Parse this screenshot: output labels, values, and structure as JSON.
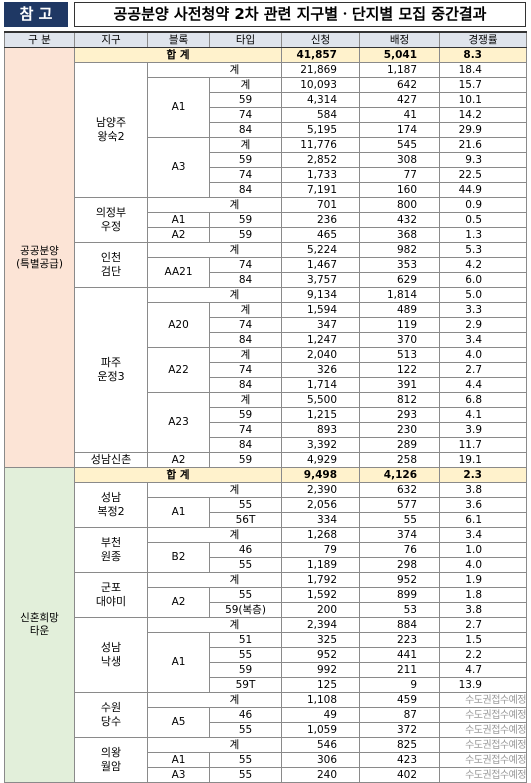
{
  "header": {
    "badge": "참 고",
    "title": "공공분양 사전청약 2차 관련 지구별ㆍ단지별 모집 중간결과"
  },
  "table": {
    "columns": [
      "구 분",
      "지구",
      "블록",
      "타입",
      "신청",
      "배정",
      "경쟁률"
    ],
    "sections": [
      {
        "name": [
          "공공분양",
          "(특별공급)"
        ],
        "total": {
          "label": "합 계",
          "apply": "41,857",
          "assign": "5,041",
          "ratio": "8.3"
        },
        "districts": [
          {
            "name": [
              "남양주",
              "왕숙2"
            ],
            "total": {
              "label": "계",
              "apply": "21,869",
              "assign": "1,187",
              "ratio": "18.4"
            },
            "blocks": [
              {
                "name": "A1",
                "rows": [
                  {
                    "type": "계",
                    "apply": "10,093",
                    "assign": "642",
                    "ratio": "15.7"
                  },
                  {
                    "type": "59",
                    "apply": "4,314",
                    "assign": "427",
                    "ratio": "10.1"
                  },
                  {
                    "type": "74",
                    "apply": "584",
                    "assign": "41",
                    "ratio": "14.2"
                  },
                  {
                    "type": "84",
                    "apply": "5,195",
                    "assign": "174",
                    "ratio": "29.9"
                  }
                ]
              },
              {
                "name": "A3",
                "rows": [
                  {
                    "type": "계",
                    "apply": "11,776",
                    "assign": "545",
                    "ratio": "21.6"
                  },
                  {
                    "type": "59",
                    "apply": "2,852",
                    "assign": "308",
                    "ratio": "9.3"
                  },
                  {
                    "type": "74",
                    "apply": "1,733",
                    "assign": "77",
                    "ratio": "22.5"
                  },
                  {
                    "type": "84",
                    "apply": "7,191",
                    "assign": "160",
                    "ratio": "44.9"
                  }
                ]
              }
            ]
          },
          {
            "name": [
              "의정부",
              "우정"
            ],
            "total": {
              "label": "계",
              "apply": "701",
              "assign": "800",
              "ratio": "0.9"
            },
            "blocks": [
              {
                "name": "A1",
                "rows": [
                  {
                    "type": "59",
                    "apply": "236",
                    "assign": "432",
                    "ratio": "0.5"
                  }
                ]
              },
              {
                "name": "A2",
                "rows": [
                  {
                    "type": "59",
                    "apply": "465",
                    "assign": "368",
                    "ratio": "1.3"
                  }
                ]
              }
            ]
          },
          {
            "name": [
              "인천",
              "검단"
            ],
            "total": {
              "label": "계",
              "apply": "5,224",
              "assign": "982",
              "ratio": "5.3"
            },
            "blocks": [
              {
                "name": "AA21",
                "rows": [
                  {
                    "type": "74",
                    "apply": "1,467",
                    "assign": "353",
                    "ratio": "4.2"
                  },
                  {
                    "type": "84",
                    "apply": "3,757",
                    "assign": "629",
                    "ratio": "6.0"
                  }
                ]
              }
            ]
          },
          {
            "name": [
              "파주",
              "운정3"
            ],
            "total": {
              "label": "계",
              "apply": "9,134",
              "assign": "1,814",
              "ratio": "5.0"
            },
            "blocks": [
              {
                "name": "A20",
                "rows": [
                  {
                    "type": "계",
                    "apply": "1,594",
                    "assign": "489",
                    "ratio": "3.3"
                  },
                  {
                    "type": "74",
                    "apply": "347",
                    "assign": "119",
                    "ratio": "2.9"
                  },
                  {
                    "type": "84",
                    "apply": "1,247",
                    "assign": "370",
                    "ratio": "3.4"
                  }
                ]
              },
              {
                "name": "A22",
                "rows": [
                  {
                    "type": "계",
                    "apply": "2,040",
                    "assign": "513",
                    "ratio": "4.0"
                  },
                  {
                    "type": "74",
                    "apply": "326",
                    "assign": "122",
                    "ratio": "2.7"
                  },
                  {
                    "type": "84",
                    "apply": "1,714",
                    "assign": "391",
                    "ratio": "4.4"
                  }
                ]
              },
              {
                "name": "A23",
                "rows": [
                  {
                    "type": "계",
                    "apply": "5,500",
                    "assign": "812",
                    "ratio": "6.8"
                  },
                  {
                    "type": "59",
                    "apply": "1,215",
                    "assign": "293",
                    "ratio": "4.1"
                  },
                  {
                    "type": "74",
                    "apply": "893",
                    "assign": "230",
                    "ratio": "3.9"
                  },
                  {
                    "type": "84",
                    "apply": "3,392",
                    "assign": "289",
                    "ratio": "11.7"
                  }
                ]
              }
            ]
          },
          {
            "name": [
              "성남신촌"
            ],
            "blocks": [
              {
                "name": "A2",
                "rows": [
                  {
                    "type": "59",
                    "apply": "4,929",
                    "assign": "258",
                    "ratio": "19.1"
                  }
                ]
              }
            ]
          }
        ]
      },
      {
        "name": [
          "신혼희망",
          "타운"
        ],
        "total": {
          "label": "합 계",
          "apply": "9,498",
          "assign": "4,126",
          "ratio": "2.3"
        },
        "districts": [
          {
            "name": [
              "성남",
              "복정2"
            ],
            "total": {
              "label": "계",
              "apply": "2,390",
              "assign": "632",
              "ratio": "3.8"
            },
            "blocks": [
              {
                "name": "A1",
                "rows": [
                  {
                    "type": "55",
                    "apply": "2,056",
                    "assign": "577",
                    "ratio": "3.6"
                  },
                  {
                    "type": "56T",
                    "apply": "334",
                    "assign": "55",
                    "ratio": "6.1"
                  }
                ]
              }
            ]
          },
          {
            "name": [
              "부천",
              "원종"
            ],
            "total": {
              "label": "계",
              "apply": "1,268",
              "assign": "374",
              "ratio": "3.4"
            },
            "blocks": [
              {
                "name": "B2",
                "rows": [
                  {
                    "type": "46",
                    "apply": "79",
                    "assign": "76",
                    "ratio": "1.0"
                  },
                  {
                    "type": "55",
                    "apply": "1,189",
                    "assign": "298",
                    "ratio": "4.0"
                  }
                ]
              }
            ]
          },
          {
            "name": [
              "군포",
              "대야미"
            ],
            "total": {
              "label": "계",
              "apply": "1,792",
              "assign": "952",
              "ratio": "1.9"
            },
            "blocks": [
              {
                "name": "A2",
                "rows": [
                  {
                    "type": "55",
                    "apply": "1,592",
                    "assign": "899",
                    "ratio": "1.8"
                  },
                  {
                    "type": "59(복층)",
                    "apply": "200",
                    "assign": "53",
                    "ratio": "3.8"
                  }
                ]
              }
            ]
          },
          {
            "name": [
              "성남",
              "낙생"
            ],
            "total": {
              "label": "계",
              "apply": "2,394",
              "assign": "884",
              "ratio": "2.7"
            },
            "blocks": [
              {
                "name": "A1",
                "rows": [
                  {
                    "type": "51",
                    "apply": "325",
                    "assign": "223",
                    "ratio": "1.5"
                  },
                  {
                    "type": "55",
                    "apply": "952",
                    "assign": "441",
                    "ratio": "2.2"
                  },
                  {
                    "type": "59",
                    "apply": "992",
                    "assign": "211",
                    "ratio": "4.7"
                  },
                  {
                    "type": "59T",
                    "apply": "125",
                    "assign": "9",
                    "ratio": "13.9"
                  }
                ]
              }
            ]
          },
          {
            "name": [
              "수원",
              "당수"
            ],
            "total": {
              "label": "계",
              "apply": "1,108",
              "assign": "459",
              "ratio": "수도권접수예정"
            },
            "blocks": [
              {
                "name": "A5",
                "rows": [
                  {
                    "type": "46",
                    "apply": "49",
                    "assign": "87",
                    "ratio": "수도권접수예정"
                  },
                  {
                    "type": "55",
                    "apply": "1,059",
                    "assign": "372",
                    "ratio": "수도권접수예정"
                  }
                ]
              }
            ]
          },
          {
            "name": [
              "의왕",
              "월암"
            ],
            "total": {
              "label": "계",
              "apply": "546",
              "assign": "825",
              "ratio": "수도권접수예정"
            },
            "blocks": [
              {
                "name": "A1",
                "rows": [
                  {
                    "type": "55",
                    "apply": "306",
                    "assign": "423",
                    "ratio": "수도권접수예정"
                  }
                ]
              },
              {
                "name": "A3",
                "rows": [
                  {
                    "type": "55",
                    "apply": "240",
                    "assign": "402",
                    "ratio": "수도권접수예정"
                  }
                ]
              }
            ]
          }
        ]
      }
    ]
  }
}
